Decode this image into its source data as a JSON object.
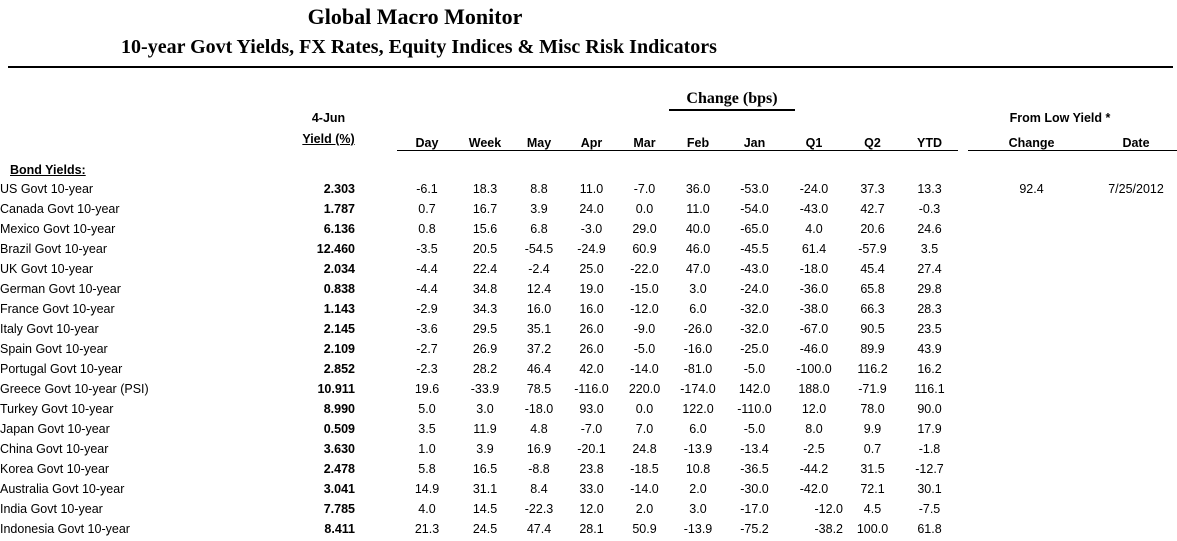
{
  "page": {
    "title": "Global Macro Monitor",
    "subtitle": "10-year Govt Yields, FX Rates, Equity Indices & Misc Risk Indicators"
  },
  "colors": {
    "text": "#000000",
    "rule": "#000000",
    "background": "#ffffff"
  },
  "table": {
    "group_header": "Change (bps)",
    "yield_header": {
      "line1": "4-Jun",
      "line2": "Yield (%)"
    },
    "from_low_header": "From Low Yield *",
    "columns": [
      "Day",
      "Week",
      "May",
      "Apr",
      "Mar",
      "Feb",
      "Jan",
      "Q1",
      "Q2",
      "YTD"
    ],
    "from_low_columns": [
      "Change",
      "Date"
    ],
    "section": "Bond Yields:",
    "rows": [
      {
        "label": "US Govt 10-year",
        "yield": "2.303",
        "values": [
          "-6.1",
          "18.3",
          "8.8",
          "11.0",
          "-7.0",
          "36.0",
          "-53.0",
          "-24.0",
          "37.3",
          "13.3"
        ],
        "low_change": "92.4",
        "low_date": "7/25/2012"
      },
      {
        "label": "Canada Govt 10-year",
        "yield": "1.787",
        "values": [
          "0.7",
          "16.7",
          "3.9",
          "24.0",
          "0.0",
          "11.0",
          "-54.0",
          "-43.0",
          "42.7",
          "-0.3"
        ],
        "low_change": "",
        "low_date": ""
      },
      {
        "label": "Mexico Govt 10-year",
        "yield": "6.136",
        "values": [
          "0.8",
          "15.6",
          "6.8",
          "-3.0",
          "29.0",
          "40.0",
          "-65.0",
          "4.0",
          "20.6",
          "24.6"
        ],
        "low_change": "",
        "low_date": ""
      },
      {
        "label": "Brazil Govt 10-year",
        "yield": "12.460",
        "values": [
          "-3.5",
          "20.5",
          "-54.5",
          "-24.9",
          "60.9",
          "46.0",
          "-45.5",
          "61.4",
          "-57.9",
          "3.5"
        ],
        "low_change": "",
        "low_date": ""
      },
      {
        "label": "UK Govt 10-year",
        "yield": "2.034",
        "values": [
          "-4.4",
          "22.4",
          "-2.4",
          "25.0",
          "-22.0",
          "47.0",
          "-43.0",
          "-18.0",
          "45.4",
          "27.4"
        ],
        "low_change": "",
        "low_date": ""
      },
      {
        "label": "German Govt 10-year",
        "yield": "0.838",
        "values": [
          "-4.4",
          "34.8",
          "12.4",
          "19.0",
          "-15.0",
          "3.0",
          "-24.0",
          "-36.0",
          "65.8",
          "29.8"
        ],
        "low_change": "",
        "low_date": ""
      },
      {
        "label": "France Govt 10-year",
        "yield": "1.143",
        "values": [
          "-2.9",
          "34.3",
          "16.0",
          "16.0",
          "-12.0",
          "6.0",
          "-32.0",
          "-38.0",
          "66.3",
          "28.3"
        ],
        "low_change": "",
        "low_date": ""
      },
      {
        "label": "Italy Govt 10-year",
        "yield": "2.145",
        "values": [
          "-3.6",
          "29.5",
          "35.1",
          "26.0",
          "-9.0",
          "-26.0",
          "-32.0",
          "-67.0",
          "90.5",
          "23.5"
        ],
        "low_change": "",
        "low_date": ""
      },
      {
        "label": "Spain Govt 10-year",
        "yield": "2.109",
        "values": [
          "-2.7",
          "26.9",
          "37.2",
          "26.0",
          "-5.0",
          "-16.0",
          "-25.0",
          "-46.0",
          "89.9",
          "43.9"
        ],
        "low_change": "",
        "low_date": ""
      },
      {
        "label": "Portugal Govt 10-year",
        "yield": "2.852",
        "values": [
          "-2.3",
          "28.2",
          "46.4",
          "42.0",
          "-14.0",
          "-81.0",
          "-5.0",
          "-100.0",
          "116.2",
          "16.2"
        ],
        "low_change": "",
        "low_date": ""
      },
      {
        "label": "Greece Govt 10-year (PSI)",
        "yield": "10.911",
        "values": [
          "19.6",
          "-33.9",
          "78.5",
          "-116.0",
          "220.0",
          "-174.0",
          "142.0",
          "188.0",
          "-71.9",
          "116.1"
        ],
        "low_change": "",
        "low_date": ""
      },
      {
        "label": "Turkey Govt 10-year",
        "yield": "8.990",
        "values": [
          "5.0",
          "3.0",
          "-18.0",
          "93.0",
          "0.0",
          "122.0",
          "-110.0",
          "12.0",
          "78.0",
          "90.0"
        ],
        "low_change": "",
        "low_date": ""
      },
      {
        "label": "Japan Govt 10-year",
        "yield": "0.509",
        "values": [
          "3.5",
          "11.9",
          "4.8",
          "-7.0",
          "7.0",
          "6.0",
          "-5.0",
          "8.0",
          "9.9",
          "17.9"
        ],
        "low_change": "",
        "low_date": ""
      },
      {
        "label": "China Govt 10-year",
        "yield": "3.630",
        "values": [
          "1.0",
          "3.9",
          "16.9",
          "-20.1",
          "24.8",
          "-13.9",
          "-13.4",
          "-2.5",
          "0.7",
          "-1.8"
        ],
        "low_change": "",
        "low_date": ""
      },
      {
        "label": "Korea Govt 10-year",
        "yield": "2.478",
        "values": [
          "5.8",
          "16.5",
          "-8.8",
          "23.8",
          "-18.5",
          "10.8",
          "-36.5",
          "-44.2",
          "31.5",
          "-12.7"
        ],
        "low_change": "",
        "low_date": ""
      },
      {
        "label": "Australia Govt 10-year",
        "yield": "3.041",
        "values": [
          "14.9",
          "31.1",
          "8.4",
          "33.0",
          "-14.0",
          "2.0",
          "-30.0",
          "-42.0",
          "72.1",
          "30.1"
        ],
        "low_change": "",
        "low_date": ""
      },
      {
        "label": "India Govt 10-year",
        "yield": "7.785",
        "values": [
          "4.0",
          "14.5",
          "-22.3",
          "12.0",
          "2.0",
          "3.0",
          "-17.0",
          "-12.0",
          "4.5",
          "-7.5"
        ],
        "low_change": "",
        "low_date": ""
      },
      {
        "label": "Indonesia Govt 10-year",
        "yield": "8.411",
        "values": [
          "21.3",
          "24.5",
          "47.4",
          "28.1",
          "50.9",
          "-13.9",
          "-75.2",
          "-38.2",
          "100.0",
          "61.8"
        ],
        "low_change": "",
        "low_date": ""
      }
    ]
  }
}
